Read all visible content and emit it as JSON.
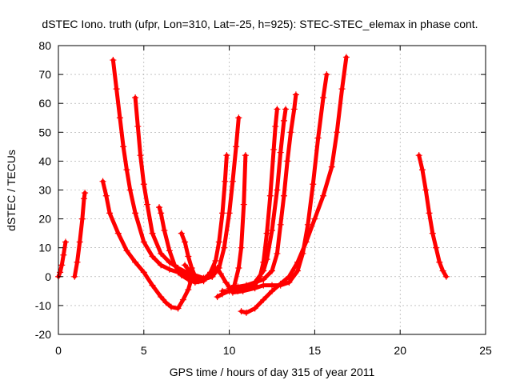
{
  "chart_data": {
    "type": "scatter",
    "title": "dSTEC Iono. truth (ufpr, Lon=310, Lat=-25, h=925): STEC-STEC_elemax in phase cont.",
    "xlabel": "GPS time / hours of day 315 of year 2011",
    "ylabel": "dSTEC  / TECUs",
    "xlim": [
      0,
      25
    ],
    "ylim": [
      -20,
      80
    ],
    "xticks": [
      "0",
      "5",
      "10",
      "15",
      "20",
      "25"
    ],
    "yticks": [
      "-20",
      "-10",
      "0",
      "10",
      "20",
      "30",
      "40",
      "50",
      "60",
      "70",
      "80"
    ],
    "grid": true,
    "marker": "plus",
    "color": "#ff0000",
    "series": [
      {
        "points": [
          [
            0.0,
            0.0
          ],
          [
            0.1,
            1.5
          ],
          [
            0.2,
            4.0
          ],
          [
            0.3,
            7.5
          ],
          [
            0.42,
            12.0
          ]
        ]
      },
      {
        "points": [
          [
            0.95,
            0.0
          ],
          [
            1.1,
            5.0
          ],
          [
            1.25,
            12.0
          ],
          [
            1.4,
            20.0
          ],
          [
            1.5,
            27.0
          ],
          [
            1.55,
            29.0
          ]
        ]
      },
      {
        "points": [
          [
            2.6,
            33.0
          ],
          [
            2.8,
            28.0
          ],
          [
            3.0,
            22.0
          ],
          [
            3.5,
            15.0
          ],
          [
            4.0,
            9.0
          ],
          [
            4.5,
            5.0
          ],
          [
            5.0,
            1.5
          ],
          [
            5.5,
            -3.0
          ],
          [
            6.0,
            -7.0
          ],
          [
            6.3,
            -9.0
          ],
          [
            6.6,
            -10.5
          ],
          [
            7.0,
            -11.0
          ],
          [
            7.3,
            -8.0
          ],
          [
            7.6,
            -4.5
          ],
          [
            7.8,
            -0.5
          ],
          [
            8.0,
            -1.5
          ],
          [
            8.5,
            -1.0
          ],
          [
            9.0,
            0.0
          ],
          [
            9.2,
            3.0
          ]
        ]
      },
      {
        "points": [
          [
            3.2,
            75.0
          ],
          [
            3.4,
            65.0
          ],
          [
            3.6,
            55.0
          ],
          [
            3.8,
            45.0
          ],
          [
            4.0,
            37.0
          ],
          [
            4.2,
            30.0
          ],
          [
            4.5,
            22.0
          ],
          [
            5.0,
            12.0
          ],
          [
            5.5,
            7.0
          ],
          [
            6.0,
            4.0
          ],
          [
            6.5,
            2.5
          ],
          [
            7.0,
            1.5
          ],
          [
            7.5,
            0.5
          ],
          [
            8.0,
            0.0
          ],
          [
            8.5,
            -0.5
          ]
        ]
      },
      {
        "points": [
          [
            4.5,
            62.0
          ],
          [
            4.65,
            52.0
          ],
          [
            4.8,
            42.0
          ],
          [
            5.0,
            32.0
          ],
          [
            5.2,
            25.0
          ],
          [
            5.5,
            15.0
          ],
          [
            6.0,
            8.0
          ],
          [
            6.5,
            5.0
          ],
          [
            7.0,
            3.0
          ],
          [
            7.5,
            1.5
          ],
          [
            8.0,
            -1.0
          ],
          [
            8.5,
            -1.0
          ]
        ]
      },
      {
        "points": [
          [
            5.9,
            24.0
          ],
          [
            6.0,
            22.0
          ],
          [
            6.2,
            16.0
          ],
          [
            6.5,
            9.0
          ],
          [
            6.8,
            4.0
          ],
          [
            7.2,
            0.5
          ],
          [
            7.6,
            -1.0
          ],
          [
            8.0,
            -2.0
          ],
          [
            8.5,
            -1.5
          ]
        ]
      },
      {
        "points": [
          [
            7.2,
            15.0
          ],
          [
            7.4,
            12.0
          ],
          [
            7.6,
            7.0
          ],
          [
            7.8,
            3.0
          ],
          [
            8.0,
            0.0
          ],
          [
            8.2,
            -1.5
          ]
        ]
      },
      {
        "points": [
          [
            7.4,
            4.0
          ],
          [
            7.8,
            1.0
          ],
          [
            8.2,
            -1.0
          ],
          [
            8.6,
            -0.5
          ],
          [
            8.9,
            1.5
          ],
          [
            9.2,
            5.5
          ],
          [
            9.4,
            12.0
          ],
          [
            9.6,
            22.0
          ],
          [
            9.75,
            33.0
          ],
          [
            9.85,
            42.0
          ]
        ]
      },
      {
        "points": [
          [
            7.6,
            2.0
          ],
          [
            8.0,
            0.5
          ],
          [
            8.5,
            -0.5
          ],
          [
            9.0,
            0.0
          ],
          [
            9.4,
            3.0
          ],
          [
            9.7,
            10.0
          ],
          [
            10.0,
            22.0
          ],
          [
            10.2,
            33.0
          ],
          [
            10.4,
            45.0
          ],
          [
            10.55,
            55.0
          ]
        ]
      },
      {
        "points": [
          [
            9.3,
            -7.0
          ],
          [
            9.6,
            -6.0
          ],
          [
            10.0,
            -5.0
          ],
          [
            10.3,
            -3.0
          ],
          [
            10.55,
            3.0
          ],
          [
            10.7,
            10.0
          ],
          [
            10.85,
            25.0
          ],
          [
            10.95,
            42.0
          ]
        ]
      },
      {
        "points": [
          [
            9.3,
            3.0
          ],
          [
            9.5,
            1.0
          ],
          [
            9.8,
            -2.0
          ],
          [
            10.0,
            -3.5
          ],
          [
            10.5,
            -5.0
          ],
          [
            11.0,
            -4.0
          ],
          [
            11.5,
            -2.0
          ],
          [
            12.0,
            2.0
          ],
          [
            12.2,
            6.0
          ],
          [
            12.5,
            16.0
          ],
          [
            12.8,
            30.0
          ],
          [
            13.0,
            43.0
          ],
          [
            13.2,
            54.0
          ],
          [
            13.3,
            58.0
          ]
        ]
      },
      {
        "points": [
          [
            9.6,
            -5.0
          ],
          [
            10.0,
            -5.0
          ],
          [
            10.5,
            -4.5
          ],
          [
            11.0,
            -3.5
          ],
          [
            11.5,
            -3.0
          ],
          [
            11.8,
            0.0
          ],
          [
            12.0,
            5.0
          ],
          [
            12.2,
            15.0
          ],
          [
            12.4,
            28.0
          ],
          [
            12.6,
            44.0
          ],
          [
            12.7,
            52.0
          ],
          [
            12.8,
            58.0
          ]
        ]
      },
      {
        "points": [
          [
            10.0,
            -4.0
          ],
          [
            10.5,
            -3.5
          ],
          [
            11.0,
            -3.0
          ],
          [
            11.5,
            -2.0
          ],
          [
            12.0,
            -1.0
          ],
          [
            12.5,
            2.0
          ],
          [
            12.8,
            8.0
          ],
          [
            13.0,
            18.0
          ],
          [
            13.2,
            28.0
          ],
          [
            13.4,
            40.0
          ],
          [
            13.6,
            50.0
          ],
          [
            13.8,
            58.0
          ],
          [
            13.9,
            63.0
          ]
        ]
      },
      {
        "points": [
          [
            10.2,
            -5.5
          ],
          [
            10.8,
            -5.0
          ],
          [
            11.5,
            -4.0
          ],
          [
            12.0,
            -3.0
          ],
          [
            12.5,
            -3.0
          ],
          [
            13.0,
            -3.0
          ],
          [
            13.5,
            -2.0
          ],
          [
            14.0,
            2.0
          ],
          [
            14.3,
            8.0
          ],
          [
            14.6,
            18.0
          ],
          [
            14.9,
            32.0
          ],
          [
            15.2,
            48.0
          ],
          [
            15.5,
            62.0
          ],
          [
            15.7,
            70.0
          ]
        ]
      },
      {
        "points": [
          [
            10.7,
            -12.0
          ],
          [
            11.0,
            -12.5
          ],
          [
            11.5,
            -11.0
          ],
          [
            12.0,
            -8.0
          ],
          [
            12.5,
            -5.0
          ],
          [
            13.0,
            -2.5
          ],
          [
            13.5,
            0.0
          ],
          [
            14.0,
            5.0
          ],
          [
            14.5,
            12.0
          ],
          [
            15.0,
            20.0
          ],
          [
            15.5,
            28.0
          ],
          [
            16.0,
            38.0
          ],
          [
            16.3,
            50.0
          ],
          [
            16.6,
            65.0
          ],
          [
            16.85,
            76.0
          ]
        ]
      },
      {
        "points": [
          [
            21.1,
            42.0
          ],
          [
            21.3,
            37.0
          ],
          [
            21.5,
            30.0
          ],
          [
            21.7,
            22.0
          ],
          [
            21.9,
            15.0
          ],
          [
            22.1,
            10.0
          ],
          [
            22.3,
            5.0
          ],
          [
            22.5,
            2.0
          ],
          [
            22.7,
            0.0
          ]
        ]
      }
    ]
  }
}
